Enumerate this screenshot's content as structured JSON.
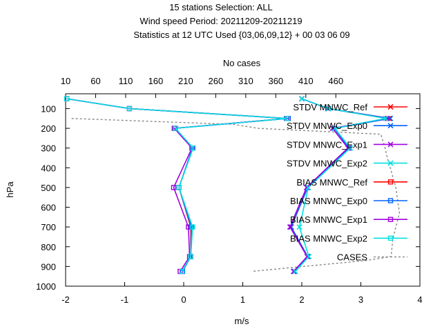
{
  "chart_data": {
    "type": "line",
    "title_lines": [
      "15 stations Selection: ALL",
      "Wind speed  Period: 20211209-20211219",
      "Statistics at 12 UTC  Used {03,06,09,12} + 00 03 06 09"
    ],
    "xlabel": "m/s",
    "ylabel": "hPa",
    "x2label": "No cases",
    "xlim": [
      -2,
      4
    ],
    "ylim": [
      1000,
      25
    ],
    "y_reversed": true,
    "x2lim": [
      10,
      600
    ],
    "x_ticks": [
      "-2",
      "-1",
      "0",
      "1",
      "2",
      "3",
      "4"
    ],
    "y_ticks": [
      "100",
      "200",
      "300",
      "400",
      "500",
      "600",
      "700",
      "800",
      "900",
      "1000"
    ],
    "x2_ticks": [
      "10",
      "60",
      "110",
      "160",
      "210",
      "260",
      "310",
      "360",
      "410",
      "460"
    ],
    "legend_position": "top-right",
    "levels": [
      50,
      100,
      150,
      200,
      300,
      500,
      700,
      850,
      925
    ],
    "series": [
      {
        "name": "STDV MNWC_Ref",
        "color": "#ff0000",
        "marker": "x",
        "values": [
          2.0,
          2.45,
          3.48,
          2.55,
          2.8,
          2.1,
          1.82,
          2.1,
          1.87
        ]
      },
      {
        "name": "STDV MNWC_Exp0",
        "color": "#0060ff",
        "marker": "x",
        "values": [
          2.0,
          2.45,
          3.5,
          2.55,
          2.8,
          2.1,
          1.82,
          2.1,
          1.87
        ]
      },
      {
        "name": "STDV MNWC_Exp1",
        "color": "#a000e0",
        "marker": "x",
        "values": [
          2.0,
          2.44,
          3.45,
          2.52,
          2.78,
          2.08,
          1.8,
          2.09,
          1.86
        ]
      },
      {
        "name": "STDV MNWC_Exp2",
        "color": "#00e0e0",
        "marker": "x",
        "values": [
          2.0,
          2.45,
          3.42,
          2.56,
          2.82,
          2.11,
          1.96,
          2.12,
          1.89
        ]
      },
      {
        "name": "BIAS MNWC_Ref",
        "color": "#ff0000",
        "marker": "square",
        "values": [
          -1.98,
          -0.92,
          1.75,
          -0.15,
          0.15,
          -0.08,
          0.12,
          0.12,
          -0.02
        ]
      },
      {
        "name": "BIAS MNWC_Exp0",
        "color": "#0060ff",
        "marker": "square",
        "values": [
          -1.98,
          -0.92,
          1.77,
          -0.14,
          0.15,
          -0.08,
          0.13,
          0.12,
          -0.02
        ]
      },
      {
        "name": "BIAS MNWC_Exp1",
        "color": "#a000e0",
        "marker": "square",
        "values": [
          -1.98,
          -0.92,
          1.74,
          -0.16,
          0.14,
          -0.17,
          0.08,
          0.1,
          -0.06
        ]
      },
      {
        "name": "BIAS MNWC_Exp2",
        "color": "#00e0e0",
        "marker": "square",
        "values": [
          -1.98,
          -0.92,
          1.75,
          -0.14,
          0.16,
          -0.08,
          0.15,
          0.12,
          -0.03
        ]
      }
    ],
    "cases": {
      "name": "CASES",
      "color": "#888888",
      "levels": [
        150,
        180,
        200,
        230,
        300,
        340,
        500,
        630,
        700,
        760,
        850,
        870,
        925
      ],
      "values": [
        20,
        290,
        330,
        535,
        542,
        545,
        560,
        566,
        560,
        555,
        552,
        510,
        320
      ]
    }
  }
}
